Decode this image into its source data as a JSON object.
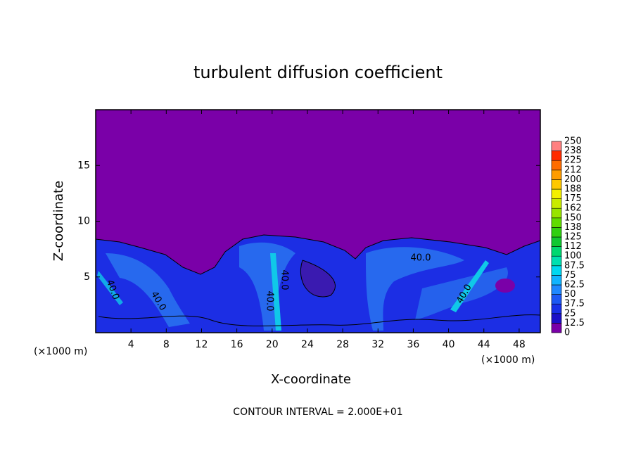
{
  "chart_data": {
    "type": "contour",
    "title": "turbulent diffusion coefficient",
    "xlabel": "X-coordinate",
    "ylabel": "Z-coordinate",
    "x_unit_label": "(×1000 m)",
    "footer": "CONTOUR INTERVAL = 2.000E+01",
    "contour_labels": [
      "40.0",
      "40.0",
      "40.0",
      "40.0",
      "40.0",
      "40.0"
    ],
    "xlim": [
      0,
      50.4
    ],
    "ylim": [
      0,
      20
    ],
    "xticks": [
      4,
      8,
      12,
      16,
      20,
      24,
      28,
      32,
      36,
      40,
      44,
      48
    ],
    "yticks": [
      5,
      10,
      15
    ],
    "colorbar": {
      "levels": [
        0,
        12.5,
        25,
        37.5,
        50,
        62.5,
        75,
        87.5,
        100,
        {
          "value": 112.5,
          "label": "112"
        },
        125,
        {
          "value": 137.5,
          "label": "138"
        },
        150,
        {
          "value": 162.5,
          "label": "162"
        },
        175,
        {
          "value": 187.5,
          "label": "188"
        },
        200,
        {
          "value": 212.5,
          "label": "212"
        },
        225,
        {
          "value": 237.5,
          "label": "238"
        },
        250
      ],
      "colors": [
        "#7a00a8",
        "#1c10c8",
        "#1830e8",
        "#1c58f4",
        "#1e88ff",
        "#10b4ff",
        "#00d8f0",
        "#00e0b0",
        "#00d870",
        "#10c830",
        "#30d010",
        "#60dc00",
        "#98e400",
        "#c8ec00",
        "#f4f000",
        "#ffc800",
        "#ff9c00",
        "#ff6c00",
        "#ff2c00",
        "#ff8080"
      ]
    }
  }
}
